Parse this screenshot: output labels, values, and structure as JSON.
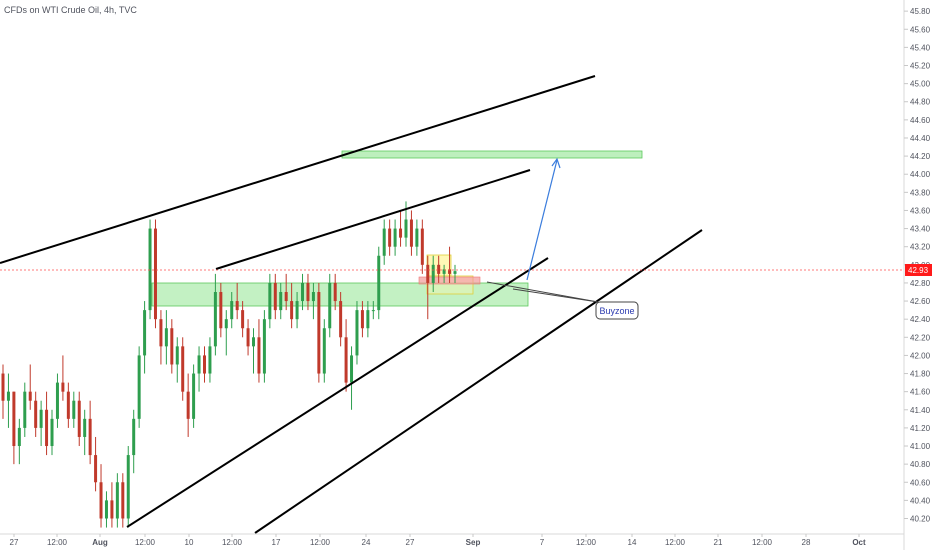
{
  "chart_data": {
    "type": "candlestick",
    "title": "CFDs on WTI Crude Oil, 4h, TVC",
    "ylim": [
      40.05,
      45.9
    ],
    "y_ticks": [
      "40.20",
      "40.40",
      "40.60",
      "40.80",
      "41.00",
      "41.20",
      "41.40",
      "41.60",
      "41.80",
      "42.00",
      "42.20",
      "42.40",
      "42.60",
      "42.80",
      "43.00",
      "43.20",
      "43.40",
      "43.60",
      "43.80",
      "44.00",
      "44.20",
      "44.40",
      "44.60",
      "44.80",
      "45.00",
      "45.20",
      "45.40",
      "45.60",
      "45.80"
    ],
    "x_ticks": [
      {
        "label": "27",
        "bold": false
      },
      {
        "label": "12:00",
        "bold": false
      },
      {
        "label": "Aug",
        "bold": true
      },
      {
        "label": "12:00",
        "bold": false
      },
      {
        "label": "10",
        "bold": false
      },
      {
        "label": "12:00",
        "bold": false
      },
      {
        "label": "17",
        "bold": false
      },
      {
        "label": "12:00",
        "bold": false
      },
      {
        "label": "24",
        "bold": false
      },
      {
        "label": "27",
        "bold": false
      },
      {
        "label": "Sep",
        "bold": true
      },
      {
        "label": "7",
        "bold": false
      },
      {
        "label": "12:00",
        "bold": false
      },
      {
        "label": "14",
        "bold": false
      },
      {
        "label": "12:00",
        "bold": false
      },
      {
        "label": "21",
        "bold": false
      },
      {
        "label": "12:00",
        "bold": false
      },
      {
        "label": "28",
        "bold": false
      },
      {
        "label": "Oct",
        "bold": true
      }
    ],
    "current_price": "42.93",
    "price_label_color": "#ff1a1a",
    "up_color": "#2e9e4e",
    "down_color": "#c0392b",
    "candles": [
      {
        "o": 41.8,
        "h": 41.9,
        "l": 41.3,
        "c": 41.5
      },
      {
        "o": 41.5,
        "h": 41.8,
        "l": 41.2,
        "c": 41.6
      },
      {
        "o": 41.6,
        "h": 41.6,
        "l": 40.8,
        "c": 41.0
      },
      {
        "o": 41.0,
        "h": 41.3,
        "l": 40.8,
        "c": 41.2
      },
      {
        "o": 41.2,
        "h": 41.7,
        "l": 41.1,
        "c": 41.6
      },
      {
        "o": 41.6,
        "h": 41.9,
        "l": 41.4,
        "c": 41.5
      },
      {
        "o": 41.5,
        "h": 41.6,
        "l": 41.1,
        "c": 41.2
      },
      {
        "o": 41.2,
        "h": 41.5,
        "l": 41.0,
        "c": 41.4
      },
      {
        "o": 41.4,
        "h": 41.6,
        "l": 40.9,
        "c": 41.0
      },
      {
        "o": 41.0,
        "h": 41.4,
        "l": 40.9,
        "c": 41.3
      },
      {
        "o": 41.3,
        "h": 41.8,
        "l": 41.2,
        "c": 41.7
      },
      {
        "o": 41.7,
        "h": 42.0,
        "l": 41.5,
        "c": 41.6
      },
      {
        "o": 41.6,
        "h": 41.7,
        "l": 41.2,
        "c": 41.3
      },
      {
        "o": 41.3,
        "h": 41.6,
        "l": 41.2,
        "c": 41.5
      },
      {
        "o": 41.5,
        "h": 41.6,
        "l": 41.0,
        "c": 41.1
      },
      {
        "o": 41.1,
        "h": 41.4,
        "l": 40.9,
        "c": 41.3
      },
      {
        "o": 41.3,
        "h": 41.5,
        "l": 40.8,
        "c": 40.9
      },
      {
        "o": 40.9,
        "h": 41.1,
        "l": 40.5,
        "c": 40.6
      },
      {
        "o": 40.6,
        "h": 40.8,
        "l": 40.1,
        "c": 40.2
      },
      {
        "o": 40.2,
        "h": 40.5,
        "l": 40.1,
        "c": 40.4
      },
      {
        "o": 40.4,
        "h": 40.6,
        "l": 40.1,
        "c": 40.2
      },
      {
        "o": 40.2,
        "h": 40.7,
        "l": 40.1,
        "c": 40.6
      },
      {
        "o": 40.6,
        "h": 40.7,
        "l": 40.1,
        "c": 40.2
      },
      {
        "o": 40.2,
        "h": 41.0,
        "l": 40.1,
        "c": 40.9
      },
      {
        "o": 40.9,
        "h": 41.4,
        "l": 40.7,
        "c": 41.3
      },
      {
        "o": 41.3,
        "h": 42.1,
        "l": 41.2,
        "c": 42.0
      },
      {
        "o": 42.0,
        "h": 42.6,
        "l": 41.8,
        "c": 42.5
      },
      {
        "o": 42.5,
        "h": 43.5,
        "l": 42.4,
        "c": 43.4
      },
      {
        "o": 43.4,
        "h": 43.5,
        "l": 42.3,
        "c": 42.4
      },
      {
        "o": 42.4,
        "h": 42.5,
        "l": 41.9,
        "c": 42.1
      },
      {
        "o": 42.1,
        "h": 42.5,
        "l": 41.9,
        "c": 42.3
      },
      {
        "o": 42.3,
        "h": 42.4,
        "l": 41.8,
        "c": 41.9
      },
      {
        "o": 41.9,
        "h": 42.2,
        "l": 41.7,
        "c": 42.1
      },
      {
        "o": 42.1,
        "h": 42.2,
        "l": 41.5,
        "c": 41.6
      },
      {
        "o": 41.6,
        "h": 41.8,
        "l": 41.1,
        "c": 41.3
      },
      {
        "o": 41.3,
        "h": 41.9,
        "l": 41.2,
        "c": 41.8
      },
      {
        "o": 41.8,
        "h": 42.1,
        "l": 41.6,
        "c": 42.0
      },
      {
        "o": 42.0,
        "h": 42.1,
        "l": 41.7,
        "c": 41.8
      },
      {
        "o": 41.8,
        "h": 42.2,
        "l": 41.7,
        "c": 42.1
      },
      {
        "o": 42.1,
        "h": 42.9,
        "l": 42.0,
        "c": 42.7
      },
      {
        "o": 42.7,
        "h": 42.8,
        "l": 42.2,
        "c": 42.3
      },
      {
        "o": 42.3,
        "h": 42.5,
        "l": 42.0,
        "c": 42.4
      },
      {
        "o": 42.4,
        "h": 42.7,
        "l": 42.3,
        "c": 42.6
      },
      {
        "o": 42.6,
        "h": 42.8,
        "l": 42.4,
        "c": 42.5
      },
      {
        "o": 42.5,
        "h": 42.6,
        "l": 42.2,
        "c": 42.3
      },
      {
        "o": 42.3,
        "h": 42.4,
        "l": 42.0,
        "c": 42.1
      },
      {
        "o": 42.1,
        "h": 42.3,
        "l": 41.8,
        "c": 42.2
      },
      {
        "o": 42.2,
        "h": 42.4,
        "l": 41.7,
        "c": 41.8
      },
      {
        "o": 41.8,
        "h": 42.5,
        "l": 41.7,
        "c": 42.4
      },
      {
        "o": 42.4,
        "h": 42.9,
        "l": 42.3,
        "c": 42.8
      },
      {
        "o": 42.8,
        "h": 42.9,
        "l": 42.4,
        "c": 42.5
      },
      {
        "o": 42.5,
        "h": 42.8,
        "l": 42.4,
        "c": 42.7
      },
      {
        "o": 42.7,
        "h": 42.9,
        "l": 42.5,
        "c": 42.6
      },
      {
        "o": 42.6,
        "h": 42.8,
        "l": 42.3,
        "c": 42.4
      },
      {
        "o": 42.4,
        "h": 42.7,
        "l": 42.3,
        "c": 42.6
      },
      {
        "o": 42.6,
        "h": 42.9,
        "l": 42.5,
        "c": 42.8
      },
      {
        "o": 42.8,
        "h": 42.9,
        "l": 42.5,
        "c": 42.6
      },
      {
        "o": 42.6,
        "h": 42.8,
        "l": 42.4,
        "c": 42.7
      },
      {
        "o": 42.7,
        "h": 42.8,
        "l": 41.7,
        "c": 41.8
      },
      {
        "o": 41.8,
        "h": 42.4,
        "l": 41.7,
        "c": 42.3
      },
      {
        "o": 42.3,
        "h": 42.9,
        "l": 42.2,
        "c": 42.8
      },
      {
        "o": 42.8,
        "h": 42.9,
        "l": 42.5,
        "c": 42.6
      },
      {
        "o": 42.6,
        "h": 42.7,
        "l": 42.1,
        "c": 42.2
      },
      {
        "o": 42.2,
        "h": 42.4,
        "l": 41.6,
        "c": 41.7
      },
      {
        "o": 41.7,
        "h": 42.1,
        "l": 41.4,
        "c": 42.0
      },
      {
        "o": 42.0,
        "h": 42.6,
        "l": 41.9,
        "c": 42.5
      },
      {
        "o": 42.5,
        "h": 42.6,
        "l": 42.2,
        "c": 42.3
      },
      {
        "o": 42.3,
        "h": 42.6,
        "l": 42.2,
        "c": 42.5
      },
      {
        "o": 42.5,
        "h": 42.6,
        "l": 42.4,
        "c": 42.5
      },
      {
        "o": 42.5,
        "h": 43.2,
        "l": 42.4,
        "c": 43.1
      },
      {
        "o": 43.1,
        "h": 43.5,
        "l": 43.0,
        "c": 43.4
      },
      {
        "o": 43.4,
        "h": 43.5,
        "l": 43.1,
        "c": 43.2
      },
      {
        "o": 43.2,
        "h": 43.5,
        "l": 43.1,
        "c": 43.4
      },
      {
        "o": 43.4,
        "h": 43.6,
        "l": 43.2,
        "c": 43.3
      },
      {
        "o": 43.3,
        "h": 43.7,
        "l": 43.2,
        "c": 43.5
      },
      {
        "o": 43.5,
        "h": 43.6,
        "l": 43.1,
        "c": 43.2
      },
      {
        "o": 43.2,
        "h": 43.5,
        "l": 43.1,
        "c": 43.4
      },
      {
        "o": 43.4,
        "h": 43.5,
        "l": 42.9,
        "c": 43.0
      },
      {
        "o": 43.0,
        "h": 43.1,
        "l": 42.4,
        "c": 42.8
      },
      {
        "o": 42.8,
        "h": 43.1,
        "l": 42.7,
        "c": 43.0
      },
      {
        "o": 43.0,
        "h": 43.1,
        "l": 42.8,
        "c": 42.9
      },
      {
        "o": 42.9,
        "h": 43.0,
        "l": 42.8,
        "c": 42.95
      },
      {
        "o": 42.95,
        "h": 43.2,
        "l": 42.8,
        "c": 42.9
      },
      {
        "o": 42.9,
        "h": 43.0,
        "l": 42.8,
        "c": 42.93
      }
    ],
    "annotations": {
      "callout_text": "Buyzone"
    }
  }
}
